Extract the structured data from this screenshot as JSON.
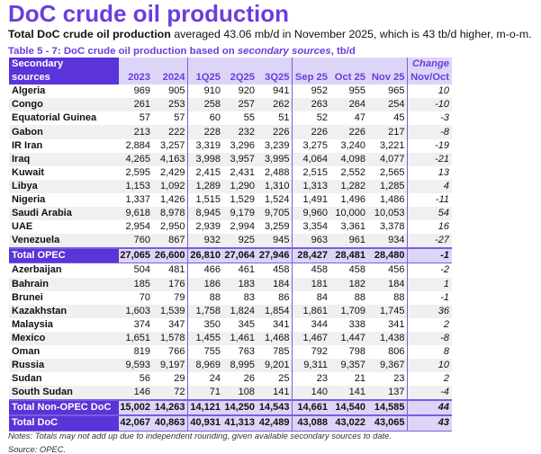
{
  "title": "DoC crude oil production",
  "subtitle": {
    "bold": "Total DoC crude oil production",
    "rest": " averaged 43.06 mb/d in November 2025, which is 43 tb/d higher, m-o-m."
  },
  "caption": {
    "pre": "Table 5 - 7: DoC crude oil production based on ",
    "italic": "secondary sources",
    "post": ", tb/d"
  },
  "header": {
    "name1": "Secondary",
    "name2": "sources",
    "cols": [
      "2023",
      "2024",
      "1Q25",
      "2Q25",
      "3Q25",
      "Sep 25",
      "Oct 25",
      "Nov 25"
    ],
    "change1": "Change",
    "change2": "Nov/Oct"
  },
  "rows": [
    {
      "name": "Algeria",
      "v": [
        "969",
        "905",
        "910",
        "920",
        "941",
        "952",
        "955",
        "965"
      ],
      "c": "10"
    },
    {
      "name": "Congo",
      "v": [
        "261",
        "253",
        "258",
        "257",
        "262",
        "263",
        "264",
        "254"
      ],
      "c": "-10"
    },
    {
      "name": "Equatorial Guinea",
      "v": [
        "57",
        "57",
        "60",
        "55",
        "51",
        "52",
        "47",
        "45"
      ],
      "c": "-3"
    },
    {
      "name": "Gabon",
      "v": [
        "213",
        "222",
        "228",
        "232",
        "226",
        "226",
        "226",
        "217"
      ],
      "c": "-8"
    },
    {
      "name": "IR Iran",
      "v": [
        "2,884",
        "3,257",
        "3,319",
        "3,296",
        "3,239",
        "3,275",
        "3,240",
        "3,221"
      ],
      "c": "-19"
    },
    {
      "name": "Iraq",
      "v": [
        "4,265",
        "4,163",
        "3,998",
        "3,957",
        "3,995",
        "4,064",
        "4,098",
        "4,077"
      ],
      "c": "-21"
    },
    {
      "name": "Kuwait",
      "v": [
        "2,595",
        "2,429",
        "2,415",
        "2,431",
        "2,488",
        "2,515",
        "2,552",
        "2,565"
      ],
      "c": "13"
    },
    {
      "name": "Libya",
      "v": [
        "1,153",
        "1,092",
        "1,289",
        "1,290",
        "1,310",
        "1,313",
        "1,282",
        "1,285"
      ],
      "c": "4"
    },
    {
      "name": "Nigeria",
      "v": [
        "1,337",
        "1,426",
        "1,515",
        "1,529",
        "1,524",
        "1,491",
        "1,496",
        "1,486"
      ],
      "c": "-11"
    },
    {
      "name": "Saudi Arabia",
      "v": [
        "9,618",
        "8,978",
        "8,945",
        "9,179",
        "9,705",
        "9,960",
        "10,000",
        "10,053"
      ],
      "c": "54"
    },
    {
      "name": "UAE",
      "v": [
        "2,954",
        "2,950",
        "2,939",
        "2,994",
        "3,259",
        "3,354",
        "3,361",
        "3,378"
      ],
      "c": "16"
    },
    {
      "name": "Venezuela",
      "v": [
        "760",
        "867",
        "932",
        "925",
        "945",
        "963",
        "961",
        "934"
      ],
      "c": "-27"
    },
    {
      "name": "Total  OPEC",
      "v": [
        "27,065",
        "26,600",
        "26,810",
        "27,064",
        "27,946",
        "28,427",
        "28,481",
        "28,480"
      ],
      "c": "-1",
      "total": true
    },
    {
      "name": "Azerbaijan",
      "v": [
        "504",
        "481",
        "466",
        "461",
        "458",
        "458",
        "458",
        "456"
      ],
      "c": "-2"
    },
    {
      "name": "Bahrain",
      "v": [
        "185",
        "176",
        "186",
        "183",
        "184",
        "181",
        "182",
        "184"
      ],
      "c": "1"
    },
    {
      "name": "Brunei",
      "v": [
        "70",
        "79",
        "88",
        "83",
        "86",
        "84",
        "88",
        "88"
      ],
      "c": "-1"
    },
    {
      "name": "Kazakhstan",
      "v": [
        "1,603",
        "1,539",
        "1,758",
        "1,824",
        "1,854",
        "1,861",
        "1,709",
        "1,745"
      ],
      "c": "36"
    },
    {
      "name": "Malaysia",
      "v": [
        "374",
        "347",
        "350",
        "345",
        "341",
        "344",
        "338",
        "341"
      ],
      "c": "2"
    },
    {
      "name": "Mexico",
      "v": [
        "1,651",
        "1,578",
        "1,455",
        "1,461",
        "1,468",
        "1,467",
        "1,447",
        "1,438"
      ],
      "c": "-8"
    },
    {
      "name": "Oman",
      "v": [
        "819",
        "766",
        "755",
        "763",
        "785",
        "792",
        "798",
        "806"
      ],
      "c": "8"
    },
    {
      "name": "Russia",
      "v": [
        "9,593",
        "9,197",
        "8,969",
        "8,995",
        "9,201",
        "9,311",
        "9,357",
        "9,367"
      ],
      "c": "10"
    },
    {
      "name": "Sudan",
      "v": [
        "56",
        "29",
        "24",
        "26",
        "25",
        "23",
        "21",
        "23"
      ],
      "c": "2"
    },
    {
      "name": "South Sudan",
      "v": [
        "146",
        "72",
        "71",
        "108",
        "141",
        "140",
        "141",
        "137"
      ],
      "c": "-4"
    },
    {
      "name": "Total Non-OPEC DoC",
      "v": [
        "15,002",
        "14,263",
        "14,121",
        "14,250",
        "14,543",
        "14,661",
        "14,540",
        "14,585"
      ],
      "c": "44",
      "total": true
    },
    {
      "name": "Total DoC",
      "v": [
        "42,067",
        "40,863",
        "40,931",
        "41,313",
        "42,489",
        "43,088",
        "43,022",
        "43,065"
      ],
      "c": "43",
      "total": true
    }
  ],
  "notes": "Notes: Totals may not add up due to independent rounding, given available secondary sources to date.",
  "source": "Source: OPEC.",
  "colors": {
    "accent": "#6a3de0",
    "header_dark": "#5a34d8",
    "header_light": "#ddd5f7",
    "row_alt": "#f0f0f0"
  }
}
